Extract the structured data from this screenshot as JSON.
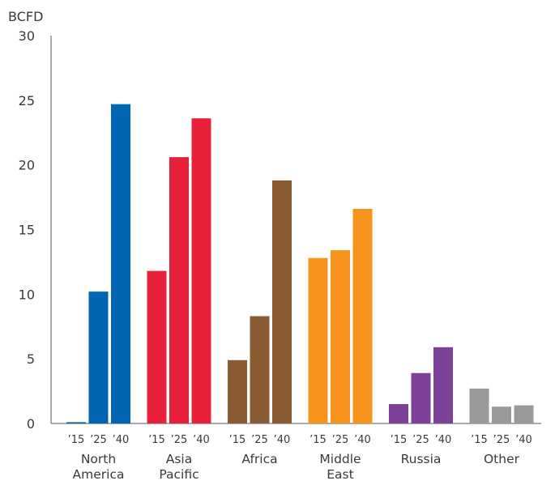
{
  "chart_data": {
    "type": "bar",
    "ylabel": "BCFD",
    "ylim": [
      0,
      30
    ],
    "yticks": [
      0,
      5,
      10,
      15,
      20,
      25,
      30
    ],
    "grid": false,
    "legend": "none",
    "years": [
      "’15",
      "’25",
      "’40"
    ],
    "groups": [
      {
        "label": [
          "North",
          "America"
        ],
        "color": "#0066b3",
        "values": [
          0.1,
          10.2,
          24.7
        ]
      },
      {
        "label": [
          "Asia",
          "Pacific"
        ],
        "color": "#e8203a",
        "values": [
          11.8,
          20.6,
          23.6
        ]
      },
      {
        "label": [
          "Africa"
        ],
        "color": "#8a5a33",
        "values": [
          4.9,
          8.3,
          18.8
        ]
      },
      {
        "label": [
          "Middle",
          "East"
        ],
        "color": "#f7941d",
        "values": [
          12.8,
          13.4,
          16.6
        ]
      },
      {
        "label": [
          "Russia"
        ],
        "color": "#7d4199",
        "values": [
          1.5,
          3.9,
          5.9
        ]
      },
      {
        "label": [
          "Other"
        ],
        "color": "#999999",
        "values": [
          2.7,
          1.3,
          1.4
        ]
      }
    ]
  }
}
